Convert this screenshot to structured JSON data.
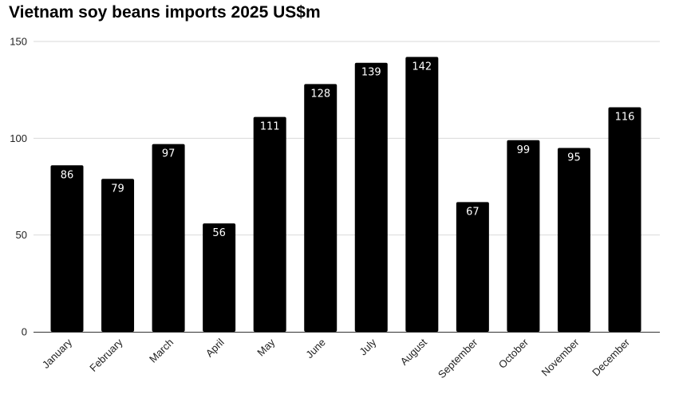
{
  "chart_data": {
    "type": "bar",
    "title": "Vietnam soy beans imports 2025 US$m",
    "xlabel": "",
    "ylabel": "",
    "categories": [
      "January",
      "February",
      "March",
      "April",
      "May",
      "June",
      "July",
      "August",
      "September",
      "October",
      "November",
      "December"
    ],
    "values": [
      86,
      79,
      97,
      56,
      111,
      128,
      139,
      142,
      67,
      99,
      95,
      116
    ],
    "ylim": [
      0,
      150
    ],
    "yticks": [
      0,
      50,
      100,
      150
    ],
    "grid": true,
    "legend": "none",
    "bar_color": "#000000",
    "data_label_color": "#ffffff",
    "gridline_color": "#d9d9d9"
  }
}
